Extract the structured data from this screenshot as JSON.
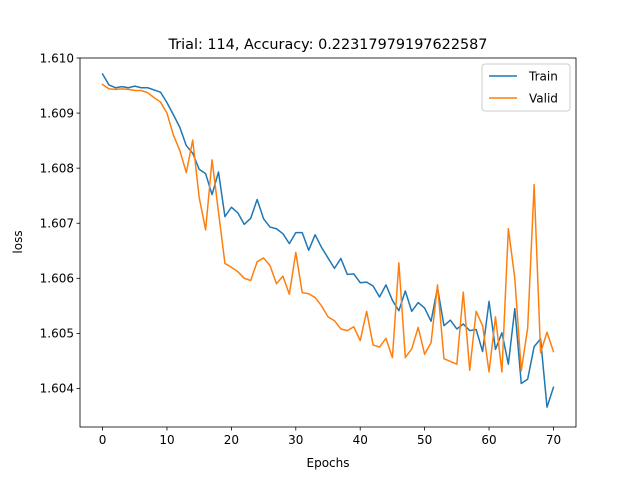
{
  "chart_data": {
    "type": "line",
    "title": "Trial: 114, Accuracy: 0.22317979197622587",
    "xlabel": "Epochs",
    "ylabel": "loss",
    "xlim": [
      -3.5,
      73.5
    ],
    "ylim": [
      1.6033,
      1.61
    ],
    "xticks": [
      0,
      10,
      20,
      30,
      40,
      50,
      60,
      70
    ],
    "yticks": [
      1.604,
      1.605,
      1.606,
      1.607,
      1.608,
      1.609,
      1.61
    ],
    "xtick_labels": [
      "0",
      "10",
      "20",
      "30",
      "40",
      "50",
      "60",
      "70"
    ],
    "ytick_labels": [
      "1.604",
      "1.605",
      "1.606",
      "1.607",
      "1.608",
      "1.609",
      "1.610"
    ],
    "grid": false,
    "legend_position": "top-right",
    "x": [
      0,
      1,
      2,
      3,
      4,
      5,
      6,
      7,
      8,
      9,
      10,
      11,
      12,
      13,
      14,
      15,
      16,
      17,
      18,
      19,
      20,
      21,
      22,
      23,
      24,
      25,
      26,
      27,
      28,
      29,
      30,
      31,
      32,
      33,
      34,
      35,
      36,
      37,
      38,
      39,
      40,
      41,
      42,
      43,
      44,
      45,
      46,
      47,
      48,
      49,
      50,
      51,
      52,
      53,
      54,
      55,
      56,
      57,
      58,
      59,
      60,
      61,
      62,
      63,
      64,
      65,
      66,
      67,
      68,
      69,
      70
    ],
    "series": [
      {
        "name": "Train",
        "color": "#1f77b4",
        "values": [
          1.60971,
          1.60951,
          1.60946,
          1.60948,
          1.60946,
          1.60949,
          1.60946,
          1.60946,
          1.60942,
          1.60938,
          1.60919,
          1.60897,
          1.60874,
          1.60841,
          1.60827,
          1.60798,
          1.6079,
          1.60752,
          1.60793,
          1.60712,
          1.60729,
          1.60719,
          1.60698,
          1.60709,
          1.60743,
          1.60708,
          1.60693,
          1.6069,
          1.60681,
          1.60663,
          1.60683,
          1.60683,
          1.60651,
          1.60679,
          1.60656,
          1.60637,
          1.60618,
          1.60636,
          1.60607,
          1.60608,
          1.60592,
          1.60593,
          1.60586,
          1.60566,
          1.60588,
          1.6056,
          1.60541,
          1.60577,
          1.6054,
          1.60556,
          1.60546,
          1.60522,
          1.60583,
          1.60514,
          1.60524,
          1.60508,
          1.60517,
          1.60505,
          1.60507,
          1.60467,
          1.60558,
          1.60471,
          1.60501,
          1.60444,
          1.60545,
          1.60409,
          1.60417,
          1.60476,
          1.6049,
          1.60366,
          1.60402
        ]
      },
      {
        "name": "Valid",
        "color": "#ff7f0e",
        "values": [
          1.60952,
          1.60944,
          1.60943,
          1.60944,
          1.60943,
          1.60941,
          1.60941,
          1.60937,
          1.60928,
          1.6092,
          1.609,
          1.6086,
          1.60832,
          1.60792,
          1.60851,
          1.60747,
          1.60688,
          1.60815,
          1.6072,
          1.60627,
          1.6062,
          1.60612,
          1.606,
          1.60596,
          1.6063,
          1.60637,
          1.60623,
          1.6059,
          1.60604,
          1.60571,
          1.60647,
          1.60574,
          1.60572,
          1.60565,
          1.6055,
          1.6053,
          1.60523,
          1.60508,
          1.60505,
          1.60512,
          1.60487,
          1.6054,
          1.60479,
          1.60475,
          1.60491,
          1.60456,
          1.60628,
          1.60456,
          1.60472,
          1.60511,
          1.60462,
          1.60483,
          1.60588,
          1.60454,
          1.60449,
          1.60444,
          1.60575,
          1.60433,
          1.6054,
          1.60514,
          1.6043,
          1.6053,
          1.6043,
          1.6069,
          1.606,
          1.60432,
          1.6051,
          1.6077,
          1.60465,
          1.60502,
          1.60467
        ]
      }
    ]
  }
}
